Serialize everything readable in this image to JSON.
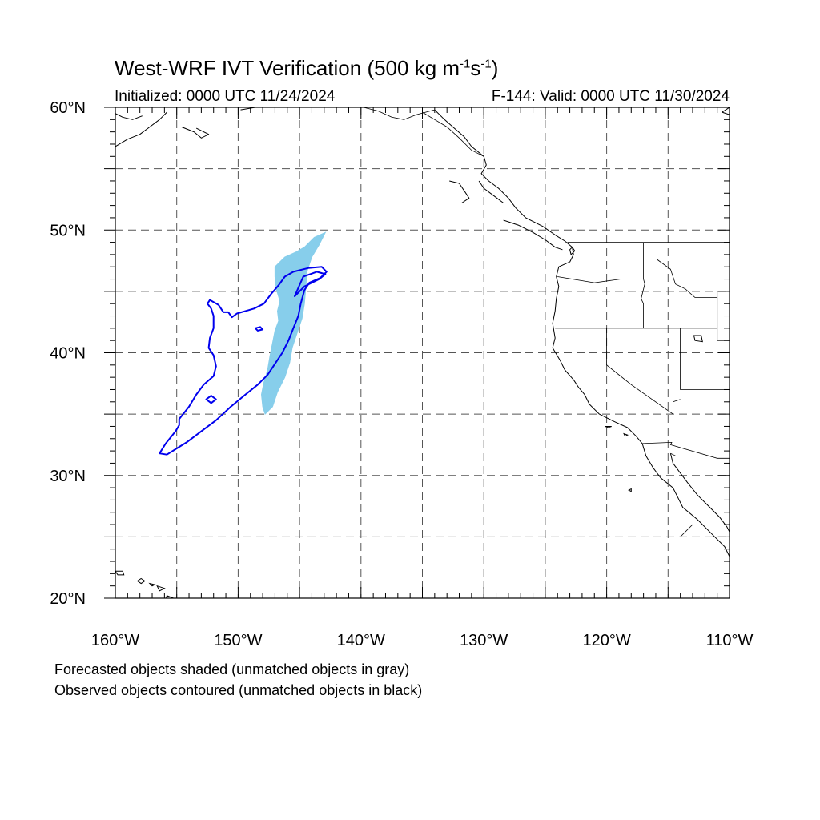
{
  "title": {
    "text": "West-WRF IVT Verification (500 kg m",
    "exp1": "-1",
    "mid": "s",
    "exp2": "-1",
    "end": ")"
  },
  "initialized": "Initialized: 0000 UTC 11/24/2024",
  "valid": "F-144: Valid: 0000 UTC 11/30/2024",
  "footer": {
    "line1": "Forecasted objects shaded (unmatched objects in gray)",
    "line2": "Observed objects contoured (unmatched objects in black)"
  },
  "map": {
    "lon_range": [
      -160,
      -110
    ],
    "lat_range": [
      20,
      60
    ],
    "lat_labels": [
      {
        "lat": 60,
        "text": "60°N"
      },
      {
        "lat": 50,
        "text": "50°N"
      },
      {
        "lat": 40,
        "text": "40°N"
      },
      {
        "lat": 30,
        "text": "30°N"
      },
      {
        "lat": 20,
        "text": "20°N"
      }
    ],
    "lon_labels": [
      {
        "lon": -160,
        "text": "160°W"
      },
      {
        "lon": -150,
        "text": "150°W"
      },
      {
        "lon": -140,
        "text": "140°W"
      },
      {
        "lon": -130,
        "text": "130°W"
      },
      {
        "lon": -120,
        "text": "120°W"
      },
      {
        "lon": -110,
        "text": "110°W"
      }
    ],
    "grid_lons": [
      -155,
      -150,
      -145,
      -140,
      -135,
      -130,
      -125,
      -120,
      -115
    ],
    "grid_lats": [
      55,
      50,
      45,
      40,
      35,
      30,
      25
    ],
    "colors": {
      "forecast_fill": "#87ceeb",
      "observed_contour": "#0000ee",
      "coast": "#000000",
      "grid": "#555555"
    },
    "forecast_object": [
      [
        -142.9,
        49.8
      ],
      [
        -143.8,
        49.4
      ],
      [
        -144.6,
        48.6
      ],
      [
        -145.3,
        48.2
      ],
      [
        -146.2,
        47.8
      ],
      [
        -147.0,
        47.0
      ],
      [
        -147.0,
        46.2
      ],
      [
        -146.9,
        45.2
      ],
      [
        -146.6,
        44.2
      ],
      [
        -146.8,
        43.4
      ],
      [
        -146.7,
        42.6
      ],
      [
        -147.0,
        41.8
      ],
      [
        -147.2,
        40.8
      ],
      [
        -147.4,
        39.8
      ],
      [
        -147.6,
        38.6
      ],
      [
        -147.9,
        37.6
      ],
      [
        -148.1,
        36.6
      ],
      [
        -148.0,
        35.6
      ],
      [
        -147.8,
        35.0
      ],
      [
        -147.2,
        35.6
      ],
      [
        -146.8,
        36.8
      ],
      [
        -146.2,
        38.0
      ],
      [
        -145.8,
        39.2
      ],
      [
        -145.6,
        40.4
      ],
      [
        -145.2,
        41.6
      ],
      [
        -144.8,
        42.8
      ],
      [
        -144.6,
        44.0
      ],
      [
        -144.5,
        45.2
      ],
      [
        -144.4,
        46.6
      ],
      [
        -144.0,
        47.8
      ],
      [
        -143.4,
        48.8
      ]
    ],
    "observed_contour": [
      [
        -155.8,
        31.7
      ],
      [
        -155.0,
        32.2
      ],
      [
        -154.2,
        32.7
      ],
      [
        -153.0,
        33.6
      ],
      [
        -151.8,
        34.5
      ],
      [
        -150.6,
        35.6
      ],
      [
        -149.4,
        36.6
      ],
      [
        -148.4,
        37.4
      ],
      [
        -147.6,
        38.2
      ],
      [
        -147.0,
        39.1
      ],
      [
        -146.4,
        40.0
      ],
      [
        -145.9,
        41.0
      ],
      [
        -145.5,
        42.0
      ],
      [
        -145.1,
        43.0
      ],
      [
        -144.9,
        44.0
      ],
      [
        -144.6,
        45.1
      ],
      [
        -144.2,
        45.7
      ],
      [
        -143.3,
        46.1
      ],
      [
        -142.8,
        46.6
      ],
      [
        -143.2,
        47.0
      ],
      [
        -144.3,
        46.9
      ],
      [
        -145.5,
        46.6
      ],
      [
        -146.2,
        46.2
      ],
      [
        -146.7,
        45.5
      ],
      [
        -147.3,
        44.8
      ],
      [
        -147.9,
        44.0
      ],
      [
        -148.7,
        43.6
      ],
      [
        -149.4,
        43.4
      ],
      [
        -150.1,
        43.2
      ],
      [
        -150.5,
        42.9
      ],
      [
        -150.8,
        43.3
      ],
      [
        -151.2,
        43.3
      ],
      [
        -151.6,
        43.9
      ],
      [
        -152.3,
        44.3
      ],
      [
        -152.5,
        44.0
      ],
      [
        -152.2,
        43.6
      ],
      [
        -152.0,
        43.0
      ],
      [
        -152.0,
        42.0
      ],
      [
        -152.3,
        41.2
      ],
      [
        -152.4,
        40.4
      ],
      [
        -152.0,
        39.8
      ],
      [
        -151.8,
        38.9
      ],
      [
        -152.0,
        38.1
      ],
      [
        -152.8,
        37.4
      ],
      [
        -153.4,
        36.6
      ],
      [
        -154.0,
        35.6
      ],
      [
        -154.8,
        34.6
      ],
      [
        -154.8,
        34.1
      ],
      [
        -155.1,
        33.6
      ],
      [
        -155.9,
        32.6
      ],
      [
        -156.4,
        31.8
      ]
    ],
    "observed_holes": [
      [
        [
          -152.2,
          35.9
        ],
        [
          -152.6,
          36.2
        ],
        [
          -152.2,
          36.5
        ],
        [
          -151.8,
          36.2
        ]
      ],
      [
        [
          -148.6,
          42.0
        ],
        [
          -148.2,
          42.1
        ],
        [
          -148.0,
          41.9
        ],
        [
          -148.4,
          41.8
        ]
      ],
      [
        [
          -145.4,
          44.6
        ],
        [
          -144.7,
          46.2
        ],
        [
          -143.6,
          46.6
        ],
        [
          -142.9,
          46.4
        ],
        [
          -143.4,
          46.0
        ],
        [
          -144.6,
          45.4
        ]
      ]
    ],
    "coast_segments": [
      [
        [
          -134.0,
          59.8
        ],
        [
          -133.2,
          59.0
        ],
        [
          -132.4,
          58.3
        ],
        [
          -131.6,
          57.6
        ],
        [
          -131.0,
          56.8
        ],
        [
          -130.0,
          56.0
        ],
        [
          -129.8,
          55.3
        ],
        [
          -130.2,
          54.6
        ],
        [
          -129.6,
          54.0
        ],
        [
          -128.8,
          53.4
        ],
        [
          -128.0,
          52.6
        ],
        [
          -127.4,
          51.8
        ],
        [
          -126.6,
          51.0
        ],
        [
          -125.2,
          50.3
        ],
        [
          -124.2,
          49.6
        ],
        [
          -123.4,
          49.1
        ],
        [
          -122.8,
          48.6
        ],
        [
          -122.7,
          48.0
        ],
        [
          -123.0,
          47.4
        ],
        [
          -123.9,
          47.0
        ],
        [
          -124.1,
          46.2
        ],
        [
          -123.9,
          45.4
        ],
        [
          -124.1,
          44.4
        ],
        [
          -124.2,
          43.4
        ],
        [
          -124.4,
          42.4
        ],
        [
          -124.2,
          41.2
        ],
        [
          -124.4,
          40.4
        ],
        [
          -123.8,
          39.4
        ],
        [
          -123.4,
          38.6
        ],
        [
          -122.7,
          37.8
        ],
        [
          -122.3,
          37.2
        ],
        [
          -121.8,
          36.6
        ],
        [
          -121.4,
          35.8
        ],
        [
          -120.6,
          35.0
        ],
        [
          -119.4,
          34.4
        ],
        [
          -118.3,
          33.9
        ],
        [
          -117.6,
          33.2
        ],
        [
          -117.1,
          32.6
        ],
        [
          -116.8,
          31.6
        ],
        [
          -116.2,
          30.6
        ],
        [
          -115.6,
          29.8
        ],
        [
          -114.6,
          29.0
        ],
        [
          -114.2,
          28.2
        ],
        [
          -113.8,
          27.4
        ],
        [
          -112.6,
          26.4
        ],
        [
          -111.4,
          25.2
        ],
        [
          -110.4,
          24.2
        ],
        [
          -110.0,
          23.4
        ]
      ],
      [
        [
          -114.8,
          31.8
        ],
        [
          -114.6,
          31.0
        ],
        [
          -114.0,
          30.2
        ],
        [
          -113.4,
          29.4
        ],
        [
          -112.6,
          28.4
        ],
        [
          -111.6,
          27.4
        ],
        [
          -110.8,
          26.6
        ],
        [
          -110.2,
          25.8
        ],
        [
          -110.0,
          25.4
        ]
      ],
      [
        [
          -130.4,
          54.0
        ],
        [
          -130.0,
          53.4
        ],
        [
          -129.2,
          52.8
        ],
        [
          -128.4,
          52.2
        ]
      ],
      [
        [
          -132.8,
          54.0
        ],
        [
          -132.0,
          53.8
        ],
        [
          -131.6,
          53.2
        ],
        [
          -131.2,
          52.6
        ],
        [
          -131.8,
          52.2
        ]
      ],
      [
        [
          -128.4,
          50.8
        ],
        [
          -127.2,
          50.4
        ],
        [
          -126.0,
          49.8
        ],
        [
          -125.0,
          49.2
        ],
        [
          -124.2,
          48.6
        ],
        [
          -123.6,
          48.4
        ]
      ],
      [
        [
          -160.0,
          56.8
        ],
        [
          -159.0,
          57.4
        ],
        [
          -158.0,
          57.8
        ],
        [
          -157.2,
          58.4
        ],
        [
          -156.4,
          59.0
        ],
        [
          -155.8,
          59.6
        ]
      ],
      [
        [
          -160.0,
          59.5
        ],
        [
          -159.4,
          59.2
        ],
        [
          -158.6,
          59.0
        ],
        [
          -157.8,
          59.3
        ]
      ],
      [
        [
          -154.6,
          58.4
        ],
        [
          -153.6,
          58.0
        ],
        [
          -153.0,
          57.5
        ],
        [
          -152.4,
          57.8
        ],
        [
          -153.4,
          58.3
        ]
      ],
      [
        [
          -149.8,
          59.8
        ],
        [
          -148.6,
          60.0
        ]
      ],
      [
        [
          -110.0,
          59.4
        ],
        [
          -110.6,
          59.6
        ],
        [
          -110.0,
          60.0
        ]
      ]
    ],
    "islands": [
      [
        [
          -160.0,
          22.2
        ],
        [
          -159.4,
          22.2
        ],
        [
          -159.3,
          21.9
        ],
        [
          -159.8,
          21.9
        ]
      ],
      [
        [
          -157.9,
          21.6
        ],
        [
          -157.6,
          21.4
        ],
        [
          -157.9,
          21.2
        ],
        [
          -158.2,
          21.4
        ]
      ],
      [
        [
          -157.2,
          21.2
        ],
        [
          -156.8,
          21.1
        ],
        [
          -157.0,
          21.0
        ]
      ],
      [
        [
          -156.6,
          21.0
        ],
        [
          -156.0,
          20.8
        ],
        [
          -156.4,
          20.6
        ]
      ],
      [
        [
          -155.8,
          20.2
        ],
        [
          -155.0,
          19.9
        ],
        [
          -155.2,
          19.6
        ],
        [
          -155.9,
          19.8
        ]
      ],
      [
        [
          -118.6,
          33.4
        ],
        [
          -118.3,
          33.3
        ],
        [
          -118.5,
          33.2
        ]
      ],
      [
        [
          -120.1,
          34.0
        ],
        [
          -119.6,
          34.0
        ],
        [
          -119.9,
          33.9
        ]
      ],
      [
        [
          -118.0,
          28.9
        ],
        [
          -118.0,
          28.7
        ],
        [
          -118.2,
          28.8
        ]
      ],
      [
        [
          -122.8,
          48.6
        ],
        [
          -122.6,
          48.3
        ],
        [
          -122.9,
          48.0
        ],
        [
          -123.0,
          48.4
        ]
      ],
      [
        [
          -112.9,
          41.4
        ],
        [
          -112.3,
          41.4
        ],
        [
          -112.2,
          40.9
        ],
        [
          -112.8,
          41.0
        ]
      ]
    ],
    "border_segments": [
      [
        [
          -141.0,
          60.0
        ],
        [
          -141.0,
          59.7
        ]
      ],
      [
        [
          -134.0,
          59.8
        ],
        [
          -135.5,
          59.4
        ],
        [
          -136.5,
          59.0
        ],
        [
          -137.5,
          59.2
        ],
        [
          -138.6,
          59.7
        ],
        [
          -139.8,
          60.0
        ]
      ],
      [
        [
          -130.0,
          56.0
        ],
        [
          -131.0,
          56.5
        ],
        [
          -132.0,
          57.5
        ],
        [
          -133.0,
          58.4
        ],
        [
          -134.0,
          59.0
        ],
        [
          -135.0,
          59.6
        ]
      ],
      [
        [
          -123.2,
          49.0
        ],
        [
          -110.0,
          49.0
        ]
      ],
      [
        [
          -117.0,
          49.0
        ],
        [
          -117.0,
          46.0
        ],
        [
          -116.9,
          45.6
        ],
        [
          -117.2,
          44.4
        ],
        [
          -117.0,
          44.0
        ],
        [
          -117.0,
          42.0
        ]
      ],
      [
        [
          -124.0,
          46.2
        ],
        [
          -121.0,
          45.7
        ],
        [
          -118.9,
          46.0
        ],
        [
          -117.0,
          46.0
        ]
      ],
      [
        [
          -115.9,
          49.0
        ],
        [
          -115.9,
          47.6
        ],
        [
          -114.8,
          46.8
        ],
        [
          -114.4,
          45.6
        ],
        [
          -113.6,
          45.2
        ],
        [
          -112.8,
          44.5
        ],
        [
          -111.0,
          44.5
        ]
      ],
      [
        [
          -111.0,
          45.0
        ],
        [
          -111.0,
          41.0
        ],
        [
          -110.0,
          41.0
        ]
      ],
      [
        [
          -124.2,
          42.0
        ],
        [
          -111.0,
          42.0
        ]
      ],
      [
        [
          -120.0,
          42.0
        ],
        [
          -120.0,
          39.0
        ],
        [
          -118.0,
          37.4
        ],
        [
          -114.6,
          35.0
        ]
      ],
      [
        [
          -114.0,
          42.0
        ],
        [
          -114.0,
          37.0
        ],
        [
          -110.0,
          37.0
        ]
      ],
      [
        [
          -114.0,
          36.2
        ],
        [
          -114.6,
          36.0
        ],
        [
          -114.6,
          35.0
        ]
      ],
      [
        [
          -117.1,
          32.6
        ],
        [
          -114.7,
          32.7
        ],
        [
          -114.8,
          32.5
        ],
        [
          -111.0,
          31.4
        ],
        [
          -110.0,
          31.4
        ]
      ],
      [
        [
          -114.8,
          31.8
        ],
        [
          -114.4,
          31.6
        ]
      ],
      [
        [
          -115.0,
          28.0
        ],
        [
          -112.8,
          28.0
        ]
      ],
      [
        [
          -114.0,
          25.0
        ],
        [
          -113.0,
          26.0
        ]
      ]
    ]
  }
}
